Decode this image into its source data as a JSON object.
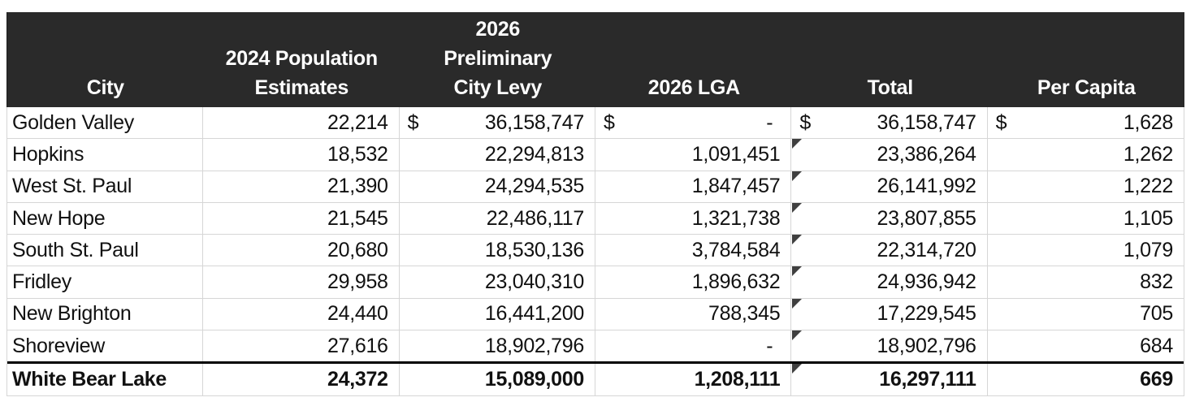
{
  "table": {
    "headers": {
      "city": "City",
      "population": "2024 Population\nEstimates",
      "levy": "2026\nPreliminary\nCity Levy",
      "lga": "2026 LGA",
      "total": "Total",
      "per_capita": "Per Capita"
    },
    "rows": [
      {
        "city": "Golden Valley",
        "population": "22,214",
        "levy_currency": "$",
        "levy": "36,158,747",
        "lga_currency": "$",
        "lga": "-",
        "total_currency": "$",
        "total": "36,158,747",
        "per_capita_currency": "$",
        "per_capita": "1,628",
        "marker": false,
        "emphasis": false
      },
      {
        "city": "Hopkins",
        "population": "18,532",
        "levy": "22,294,813",
        "lga": "1,091,451",
        "total": "23,386,264",
        "per_capita": "1,262",
        "marker": true,
        "emphasis": false
      },
      {
        "city": "West St. Paul",
        "population": "21,390",
        "levy": "24,294,535",
        "lga": "1,847,457",
        "total": "26,141,992",
        "per_capita": "1,222",
        "marker": true,
        "emphasis": false
      },
      {
        "city": "New Hope",
        "population": "21,545",
        "levy": "22,486,117",
        "lga": "1,321,738",
        "total": "23,807,855",
        "per_capita": "1,105",
        "marker": true,
        "emphasis": false
      },
      {
        "city": "South St. Paul",
        "population": "20,680",
        "levy": "18,530,136",
        "lga": "3,784,584",
        "total": "22,314,720",
        "per_capita": "1,079",
        "marker": true,
        "emphasis": false
      },
      {
        "city": "Fridley",
        "population": "29,958",
        "levy": "23,040,310",
        "lga": "1,896,632",
        "total": "24,936,942",
        "per_capita": "832",
        "marker": true,
        "emphasis": false
      },
      {
        "city": "New Brighton",
        "population": "24,440",
        "levy": "16,441,200",
        "lga": "788,345",
        "total": "17,229,545",
        "per_capita": "705",
        "marker": true,
        "emphasis": false
      },
      {
        "city": "Shoreview",
        "population": "27,616",
        "levy": "18,902,796",
        "lga": "-",
        "total": "18,902,796",
        "per_capita": "684",
        "marker": true,
        "emphasis": false
      },
      {
        "city": "White Bear Lake",
        "population": "24,372",
        "levy": "15,089,000",
        "lga": "1,208,111",
        "total": "16,297,111",
        "per_capita": "669",
        "marker": true,
        "emphasis": true
      }
    ],
    "marker_icon": "corner-triangle",
    "colors": {
      "header_bg": "#2a2a2a",
      "header_text": "#ffffff",
      "grid_line": "#d6d6d6",
      "marker": "#3f3f3f",
      "emphasis_border": "#000000",
      "body_text": "#111111"
    }
  }
}
